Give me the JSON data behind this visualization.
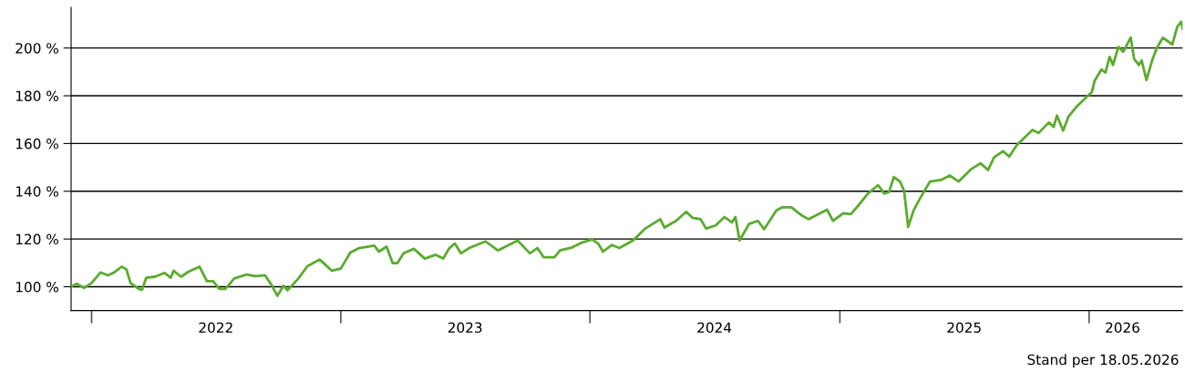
{
  "chart_data": {
    "type": "line",
    "x": [
      "2021-12-02",
      "2021-12-10",
      "2021-12-21",
      "2022-01-01",
      "2022-01-14",
      "2022-01-25",
      "2022-02-03",
      "2022-02-14",
      "2022-02-21",
      "2022-02-27",
      "2022-03-11",
      "2022-03-16",
      "2022-03-22",
      "2022-04-04",
      "2022-04-18",
      "2022-04-27",
      "2022-05-01",
      "2022-05-12",
      "2022-05-23",
      "2022-06-08",
      "2022-06-19",
      "2022-06-28",
      "2022-07-07",
      "2022-07-16",
      "2022-07-29",
      "2022-08-16",
      "2022-08-29",
      "2022-09-12",
      "2022-09-21",
      "2022-09-30",
      "2022-10-09",
      "2022-10-15",
      "2022-10-31",
      "2022-11-13",
      "2022-12-01",
      "2022-12-08",
      "2022-12-19",
      "2023-01-01",
      "2023-01-15",
      "2023-01-28",
      "2023-02-19",
      "2023-02-26",
      "2023-03-09",
      "2023-03-18",
      "2023-03-25",
      "2023-04-03",
      "2023-04-18",
      "2023-05-04",
      "2023-05-20",
      "2023-05-31",
      "2023-06-09",
      "2023-06-17",
      "2023-06-26",
      "2023-07-08",
      "2023-08-01",
      "2023-08-19",
      "2023-09-04",
      "2023-09-17",
      "2023-10-05",
      "2023-10-16",
      "2023-10-25",
      "2023-11-10",
      "2023-11-18",
      "2023-12-06",
      "2023-12-20",
      "2024-01-04",
      "2024-01-13",
      "2024-01-20",
      "2024-02-02",
      "2024-02-13",
      "2024-03-04",
      "2024-03-22",
      "2024-04-13",
      "2024-04-19",
      "2024-05-06",
      "2024-05-21",
      "2024-05-30",
      "2024-06-11",
      "2024-06-19",
      "2024-07-03",
      "2024-07-16",
      "2024-07-27",
      "2024-08-01",
      "2024-08-07",
      "2024-08-21",
      "2024-09-03",
      "2024-09-12",
      "2024-09-30",
      "2024-10-09",
      "2024-10-22",
      "2024-11-05",
      "2024-11-16",
      "2024-12-13",
      "2024-12-22",
      "2025-01-06",
      "2025-01-17",
      "2025-01-28",
      "2025-02-11",
      "2025-02-26",
      "2025-03-07",
      "2025-03-14",
      "2025-03-21",
      "2025-03-30",
      "2025-04-05",
      "2025-04-11",
      "2025-04-19",
      "2025-04-28",
      "2025-05-13",
      "2025-05-29",
      "2025-06-11",
      "2025-06-24",
      "2025-07-12",
      "2025-07-26",
      "2025-08-06",
      "2025-08-15",
      "2025-08-28",
      "2025-09-06",
      "2025-09-17",
      "2025-10-10",
      "2025-10-19",
      "2025-11-03",
      "2025-11-10",
      "2025-11-15",
      "2025-11-24",
      "2025-12-02",
      "2025-12-13",
      "2025-12-24",
      "2026-01-05",
      "2026-01-09",
      "2026-01-19",
      "2026-01-25",
      "2026-01-31",
      "2026-02-05",
      "2026-02-13",
      "2026-02-20",
      "2026-03-03",
      "2026-03-08",
      "2026-03-15",
      "2026-03-19",
      "2026-03-26",
      "2026-04-04",
      "2026-04-10",
      "2026-04-19",
      "2026-05-03",
      "2026-05-10",
      "2026-05-16",
      "2026-05-18"
    ],
    "series": [
      {
        "color": "#5aab2e",
        "values": [
          100,
          101.3,
          99.5,
          101.6,
          106,
          104.8,
          106,
          108.4,
          107.3,
          101.6,
          99.1,
          98.7,
          103.8,
          104.2,
          105.8,
          103.8,
          106.7,
          104.2,
          106.3,
          108.4,
          102.3,
          102.3,
          99.1,
          99.1,
          103.5,
          105.1,
          104.4,
          104.8,
          101,
          96.2,
          100.4,
          98.5,
          103.5,
          108.6,
          111.4,
          109.6,
          106.7,
          107.6,
          114.3,
          116.2,
          117.2,
          114.7,
          116.8,
          109.9,
          109.9,
          114,
          115.9,
          111.8,
          113.4,
          111.8,
          116.2,
          118.1,
          114,
          116.2,
          119,
          115.2,
          117.5,
          119.4,
          114,
          116.2,
          112.4,
          112.4,
          115.2,
          116.5,
          118.5,
          119.8,
          118.1,
          114.7,
          117.5,
          116.2,
          119.4,
          124.4,
          128.3,
          124.8,
          127.6,
          131.4,
          128.9,
          128.3,
          124.4,
          125.7,
          129.2,
          127,
          129.2,
          119.4,
          126.3,
          127.6,
          124.1,
          132,
          133.3,
          133.3,
          130.1,
          128.3,
          132.3,
          127.6,
          130.8,
          130.4,
          134,
          139,
          142.6,
          139,
          139.7,
          146,
          144.1,
          140.3,
          125.1,
          132,
          136.8,
          144.1,
          144.7,
          146.6,
          144.1,
          149.2,
          151.7,
          148.9,
          154.3,
          156.8,
          154.5,
          159.3,
          165.7,
          164.4,
          168.8,
          166.9,
          171.7,
          165.4,
          171.4,
          175.2,
          178.3,
          181.5,
          186.2,
          191,
          189.7,
          196.3,
          192.9,
          200.5,
          198.4,
          204.4,
          195.4,
          192.9,
          194.8,
          186.6,
          195.4,
          199.9,
          204.3,
          201.5,
          208.8,
          211,
          208.1
        ]
      }
    ],
    "xlim": [
      "2021-12-02",
      "2026-05-18"
    ],
    "xticks": [
      {
        "value": "2022-01-01",
        "label": null
      },
      {
        "value": "2022-07-02",
        "label": "2022"
      },
      {
        "value": "2023-01-01",
        "label": null
      },
      {
        "value": "2023-07-02",
        "label": "2023"
      },
      {
        "value": "2024-01-01",
        "label": null
      },
      {
        "value": "2024-07-01",
        "label": "2024"
      },
      {
        "value": "2025-01-01",
        "label": null
      },
      {
        "value": "2025-07-02",
        "label": "2025"
      },
      {
        "value": "2026-01-01",
        "label": null
      },
      {
        "value": "2026-02-19",
        "label": "2026"
      }
    ],
    "ylim": [
      90,
      217
    ],
    "yticks": [
      {
        "value": 100,
        "label": "100 %"
      },
      {
        "value": 120,
        "label": "120 %"
      },
      {
        "value": 140,
        "label": "140 %"
      },
      {
        "value": 160,
        "label": "160 %"
      },
      {
        "value": 180,
        "label": "180 %"
      },
      {
        "value": 200,
        "label": "200 %"
      }
    ],
    "grid": "y",
    "line_style": "solid",
    "annotations": [
      "Stand per 18.05.2026"
    ]
  }
}
